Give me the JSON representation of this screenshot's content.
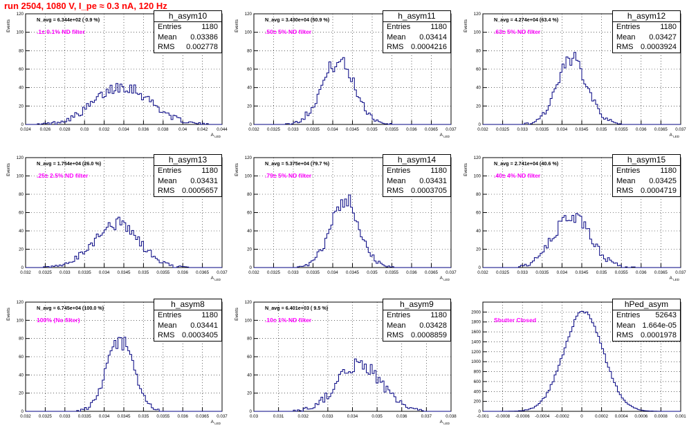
{
  "title": "run 2504,  1080 V, I_pe ≈ 0.3 nA, 120 Hz",
  "stat_labels": {
    "entries": "Entries",
    "mean": "Mean",
    "rms": "RMS"
  },
  "chart_data": [
    {
      "type": "histogram",
      "name": "h_asym10",
      "navg_text": "N_avg = 6.344e+02 ( 0.9 %)",
      "filter_text": ".1± 0.1% ND filter",
      "entries": "1180",
      "mean": "0.03386",
      "rms": "0.002778",
      "ylabel": "Events",
      "xlabel": "A_{LED}",
      "xlim": [
        0.024,
        0.044
      ],
      "ylim": [
        0,
        120
      ],
      "xticks": [
        "0.024",
        "0.026",
        "0.028",
        "0.03",
        "0.032",
        "0.034",
        "0.036",
        "0.038",
        "0.04",
        "0.042",
        "0.044"
      ],
      "yticks": [
        "0",
        "20",
        "40",
        "60",
        "80",
        "100",
        "120"
      ],
      "mu": 0.0339,
      "sigma": 0.0028,
      "peak": 42
    },
    {
      "type": "histogram",
      "name": "h_asym11",
      "navg_text": "N_avg = 3.430e+04 (50.9 %)",
      "filter_text": ".50± 5% ND filter",
      "entries": "1180",
      "mean": "0.03414",
      "rms": "0.0004216",
      "ylabel": "Events",
      "xlabel": "A_{LED}",
      "xlim": [
        0.032,
        0.037
      ],
      "ylim": [
        0,
        120
      ],
      "xticks": [
        "0.032",
        "0.0325",
        "0.033",
        "0.0335",
        "0.034",
        "0.0345",
        "0.035",
        "0.0355",
        "0.036",
        "0.0365",
        "0.037"
      ],
      "yticks": [
        "0",
        "20",
        "40",
        "60",
        "80",
        "100",
        "120"
      ],
      "mu": 0.03414,
      "sigma": 0.00042,
      "peak": 68
    },
    {
      "type": "histogram",
      "name": "h_asym12",
      "navg_text": "N_avg = 4.274e+04 (63.4 %)",
      "filter_text": ".63± 5% ND filter",
      "entries": "1180",
      "mean": "0.03427",
      "rms": "0.0003924",
      "ylabel": "Events",
      "xlabel": "A_{LED}",
      "xlim": [
        0.032,
        0.037
      ],
      "ylim": [
        0,
        120
      ],
      "xticks": [
        "0.032",
        "0.0325",
        "0.033",
        "0.0335",
        "0.034",
        "0.0345",
        "0.035",
        "0.0355",
        "0.036",
        "0.0365",
        "0.037"
      ],
      "yticks": [
        "0",
        "20",
        "40",
        "60",
        "80",
        "100",
        "120"
      ],
      "mu": 0.03427,
      "sigma": 0.00039,
      "peak": 70
    },
    {
      "type": "histogram",
      "name": "h_asym13",
      "navg_text": "N_avg = 1.754e+04 (26.0 %)",
      "filter_text": ".25± 2.5% ND filter",
      "entries": "1180",
      "mean": "0.03431",
      "rms": "0.0005657",
      "ylabel": "Events",
      "xlabel": "A_{LED}",
      "xlim": [
        0.032,
        0.037
      ],
      "ylim": [
        0,
        120
      ],
      "xticks": [
        "0.032",
        "0.0325",
        "0.033",
        "0.0335",
        "0.034",
        "0.0345",
        "0.035",
        "0.0355",
        "0.036",
        "0.0365",
        "0.037"
      ],
      "yticks": [
        "0",
        "20",
        "40",
        "60",
        "80",
        "100",
        "120"
      ],
      "mu": 0.03431,
      "sigma": 0.00057,
      "peak": 48
    },
    {
      "type": "histogram",
      "name": "h_asym14",
      "navg_text": "N_avg = 5.375e+04 (79.7 %)",
      "filter_text": ".79± 5% ND filter",
      "entries": "1180",
      "mean": "0.03431",
      "rms": "0.0003705",
      "ylabel": "Events",
      "xlabel": "A_{LED}",
      "xlim": [
        0.032,
        0.037
      ],
      "ylim": [
        0,
        120
      ],
      "xticks": [
        "0.032",
        "0.0325",
        "0.033",
        "0.0335",
        "0.034",
        "0.0345",
        "0.035",
        "0.0355",
        "0.036",
        "0.0365",
        "0.037"
      ],
      "yticks": [
        "0",
        "20",
        "40",
        "60",
        "80",
        "100",
        "120"
      ],
      "mu": 0.03431,
      "sigma": 0.00037,
      "peak": 74
    },
    {
      "type": "histogram",
      "name": "h_asym15",
      "navg_text": "N_avg = 2.741e+04 (40.6 %)",
      "filter_text": ".40± 4% ND filter",
      "entries": "1180",
      "mean": "0.03425",
      "rms": "0.0004719",
      "ylabel": "Events",
      "xlabel": "A_{LED}",
      "xlim": [
        0.032,
        0.037
      ],
      "ylim": [
        0,
        120
      ],
      "xticks": [
        "0.032",
        "0.0325",
        "0.033",
        "0.0335",
        "0.034",
        "0.0345",
        "0.035",
        "0.0355",
        "0.036",
        "0.0365",
        "0.037"
      ],
      "yticks": [
        "0",
        "20",
        "40",
        "60",
        "80",
        "100",
        "120"
      ],
      "mu": 0.03425,
      "sigma": 0.00047,
      "peak": 56
    },
    {
      "type": "histogram",
      "name": "h_asym8",
      "navg_text": "N_avg = 6.745e+04 (100.0 %)",
      "filter_text": "100% (No filter)",
      "entries": "1180",
      "mean": "0.03441",
      "rms": "0.0003405",
      "ylabel": "Events",
      "xlabel": "A_{LED}",
      "xlim": [
        0.032,
        0.037
      ],
      "ylim": [
        0,
        120
      ],
      "xticks": [
        "0.032",
        "0.0325",
        "0.033",
        "0.0335",
        "0.034",
        "0.0345",
        "0.035",
        "0.0355",
        "0.036",
        "0.0365",
        "0.037"
      ],
      "yticks": [
        "0",
        "20",
        "40",
        "60",
        "80",
        "100",
        "120"
      ],
      "mu": 0.03441,
      "sigma": 0.00034,
      "peak": 77
    },
    {
      "type": "histogram",
      "name": "h_asym9",
      "navg_text": "N_avg = 6.401e+03 ( 9.5 %)",
      "filter_text": ".10± 1% ND filter",
      "entries": "1180",
      "mean": "0.03428",
      "rms": "0.0008859",
      "ylabel": "Events",
      "xlabel": "A_{LED}",
      "xlim": [
        0.03,
        0.038
      ],
      "ylim": [
        0,
        120
      ],
      "xticks": [
        "0.03",
        "0.031",
        "0.032",
        "0.033",
        "0.034",
        "0.035",
        "0.036",
        "0.037",
        "0.038"
      ],
      "yticks": [
        "0",
        "20",
        "40",
        "60",
        "80",
        "100",
        "120"
      ],
      "mu": 0.03428,
      "sigma": 0.00089,
      "peak": 52
    },
    {
      "type": "histogram",
      "name": "hPed_asym",
      "navg_text": "",
      "filter_text": "Shutter Closed",
      "entries": "52643",
      "mean": "1.664e-05",
      "rms": "0.0001978",
      "ylabel": "",
      "xlabel": "",
      "xlim": [
        -0.001,
        0.001
      ],
      "ylim": [
        0,
        2200
      ],
      "xticks": [
        "-0.001",
        "-0.0008",
        "-0.0006",
        "-0.0004",
        "-0.0002",
        "0",
        "0.0002",
        "0.0004",
        "0.0006",
        "0.0008",
        "0.001"
      ],
      "yticks": [
        "0",
        "200",
        "400",
        "600",
        "800",
        "1000",
        "1200",
        "1400",
        "1600",
        "1800",
        "2000"
      ],
      "mu": 1.66e-05,
      "sigma": 0.000198,
      "peak": 2020
    }
  ]
}
